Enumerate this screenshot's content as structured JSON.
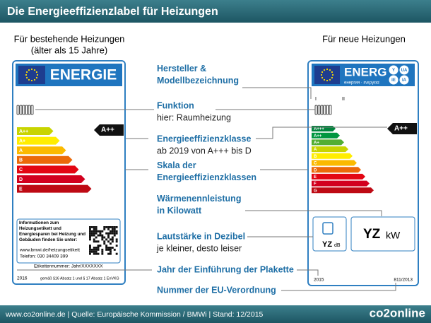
{
  "title": "Die Energieeffizienzlabel für Heizungen",
  "left": {
    "heading": "Für bestehende Heizungen",
    "subheading": "(älter als 15 Jahre)",
    "label": {
      "header": "ENERGIE",
      "classes": [
        "A++",
        "A+",
        "A",
        "B",
        "C",
        "D",
        "E"
      ],
      "rating": "A++",
      "info": "Informationen zum Heizungsetikett und Energiesparen bei Heizung und Gebäuden finden Sie unter:",
      "url": "www.bmwi.de/heizungsetikett",
      "phone": "Telefon:  030 34409 399",
      "label_number": "Etikettennummer: Jahr/XXXXXXX",
      "year": "2016",
      "law": "gemäß §16 Absatz 1 und § 17 Absatz 1 EnVKG"
    }
  },
  "right": {
    "heading": "Für neue Heizungen",
    "label": {
      "header": "ENERG",
      "languages": "енергия · ενεργεια",
      "badges": [
        "Y",
        "UA",
        "IE",
        "IA"
      ],
      "markers": [
        "I",
        "II"
      ],
      "classes": [
        "A+++",
        "A++",
        "A+",
        "A",
        "B",
        "C",
        "D",
        "E",
        "F",
        "G"
      ],
      "rating": "A++",
      "noise_value": "YZ",
      "noise_unit": "dB",
      "power_value": "YZ",
      "power_unit": "kW",
      "year": "2015",
      "regulation": "811/2013"
    }
  },
  "annotations": [
    {
      "title": "Hersteller & Modellbezeichnung"
    },
    {
      "title": "Funktion",
      "text": "hier: Raumheizung"
    },
    {
      "title": "Energieeffizienzklasse",
      "text": "ab 2019 von A+++ bis D"
    },
    {
      "title": "Skala der Energieeffizienzklassen"
    },
    {
      "title": "Wärmenennleistung in Kilowatt"
    },
    {
      "title": "Lautstärke in Dezibel",
      "text": "je kleiner, desto leiser"
    },
    {
      "title": "Jahr der Einführung der Plakette"
    },
    {
      "title": "Nummer der EU-Verordnung"
    }
  ],
  "footer": {
    "source": "www.co2online.de | Quelle: Europäische Kommission / BMWi | Stand: 12/2015",
    "logo": "co2online"
  }
}
